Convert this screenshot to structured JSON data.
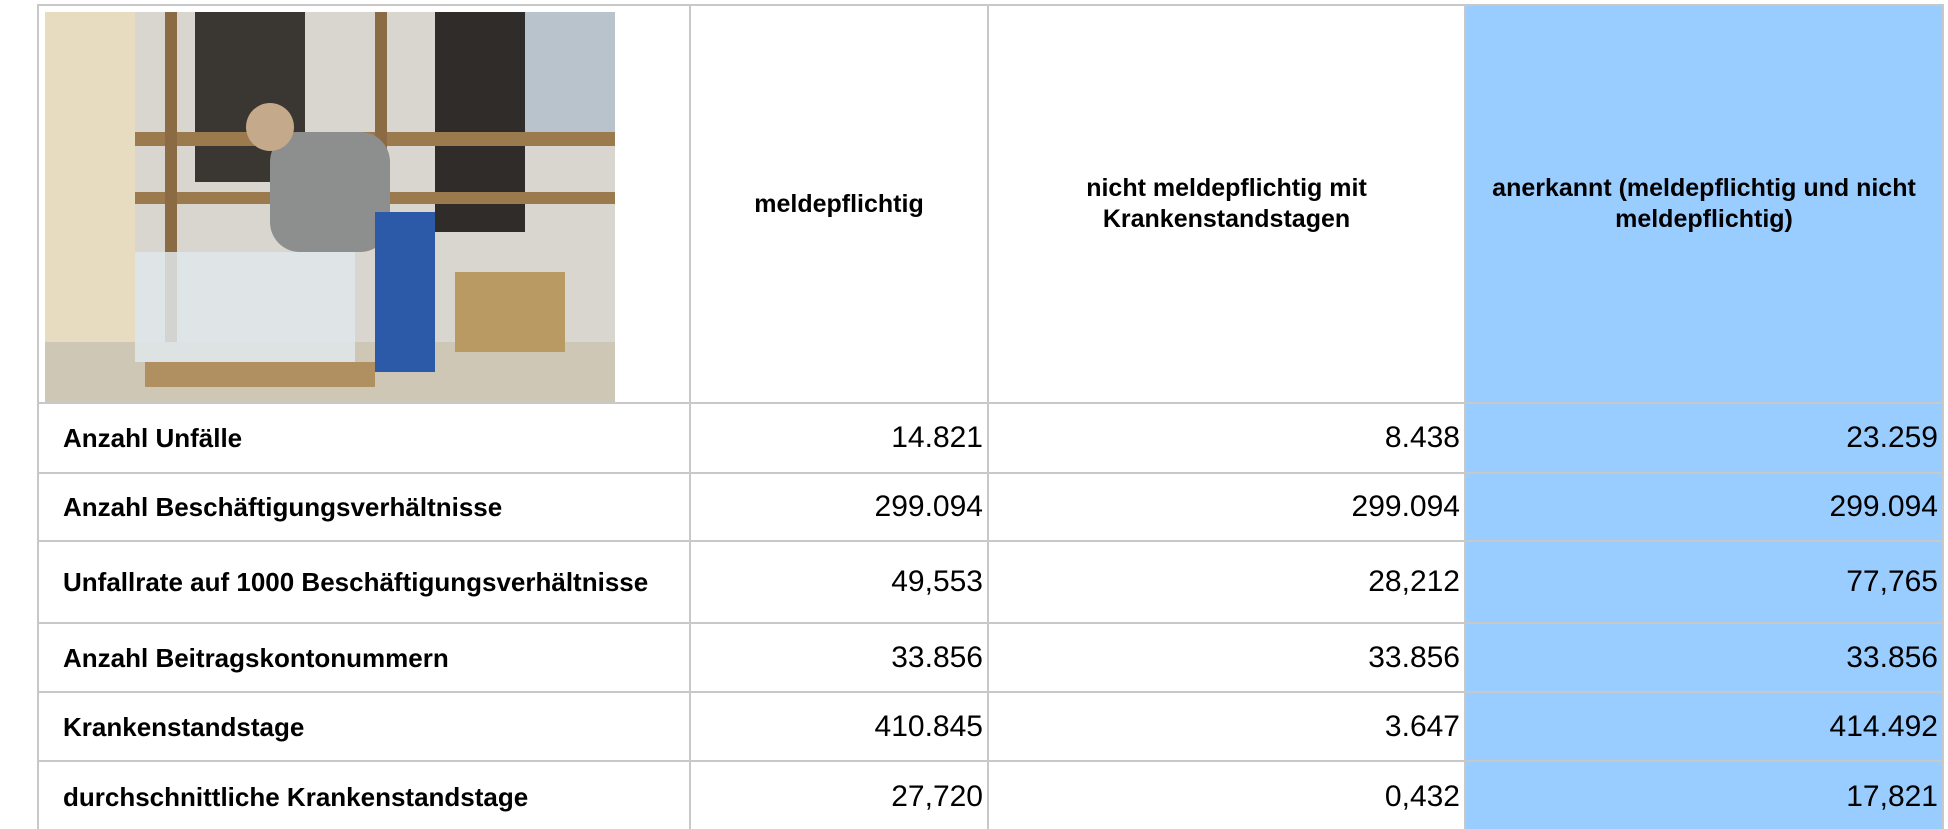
{
  "table": {
    "headers": [
      "meldepflichtig",
      "nicht meldepflichtig mit Krankenstandstagen",
      "anerkannt (meldepflichtig und nicht meldepflichtig)"
    ],
    "rows": [
      [
        "Anzahl Unfälle",
        "14.821",
        "8.438",
        "23.259"
      ],
      [
        "Anzahl Beschäftigungsverhältnisse",
        "299.094",
        "299.094",
        "299.094"
      ],
      [
        "Unfallrate auf 1000 Beschäftigungsverhältnisse",
        "49,553",
        "28,212",
        "77,765"
      ],
      [
        "Anzahl Beitragskontonummern",
        "33.856",
        "33.856",
        "33.856"
      ],
      [
        "Krankenstandstage",
        "410.845",
        "3.647",
        "414.492"
      ],
      [
        "durchschnittliche Krankenstandstage",
        "27,720",
        "0,432",
        "17,821"
      ]
    ]
  }
}
